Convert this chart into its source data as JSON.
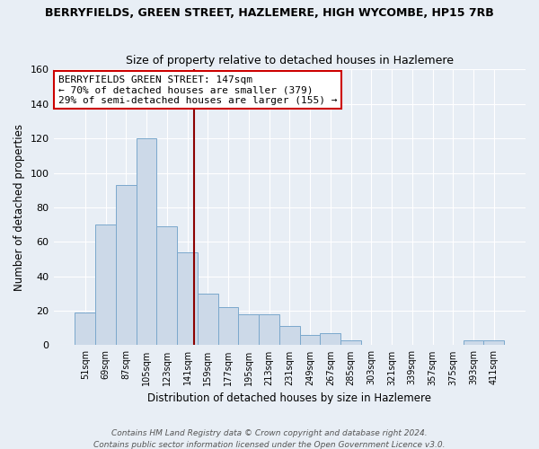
{
  "title1": "BERRYFIELDS, GREEN STREET, HAZLEMERE, HIGH WYCOMBE, HP15 7RB",
  "title2": "Size of property relative to detached houses in Hazlemere",
  "xlabel": "Distribution of detached houses by size in Hazlemere",
  "ylabel": "Number of detached properties",
  "footer1": "Contains HM Land Registry data © Crown copyright and database right 2024.",
  "footer2": "Contains public sector information licensed under the Open Government Licence v3.0.",
  "bin_labels": [
    "51sqm",
    "69sqm",
    "87sqm",
    "105sqm",
    "123sqm",
    "141sqm",
    "159sqm",
    "177sqm",
    "195sqm",
    "213sqm",
    "231sqm",
    "249sqm",
    "267sqm",
    "285sqm",
    "303sqm",
    "321sqm",
    "339sqm",
    "357sqm",
    "375sqm",
    "393sqm",
    "411sqm"
  ],
  "bar_values": [
    19,
    70,
    93,
    120,
    69,
    54,
    30,
    22,
    18,
    18,
    11,
    6,
    7,
    3,
    0,
    0,
    0,
    0,
    0,
    3,
    3
  ],
  "bar_color": "#ccd9e8",
  "bar_edge_color": "#7ba8cc",
  "vline_color": "#8b0000",
  "annotation_title": "BERRYFIELDS GREEN STREET: 147sqm",
  "annotation_line2": "← 70% of detached houses are smaller (379)",
  "annotation_line3": "29% of semi-detached houses are larger (155) →",
  "annotation_box_color": "#ffffff",
  "annotation_box_edge": "#cc0000",
  "ylim": [
    0,
    160
  ],
  "background_color": "#e8eef5",
  "grid_color": "#ffffff",
  "title1_fontsize": 9,
  "title2_fontsize": 9
}
